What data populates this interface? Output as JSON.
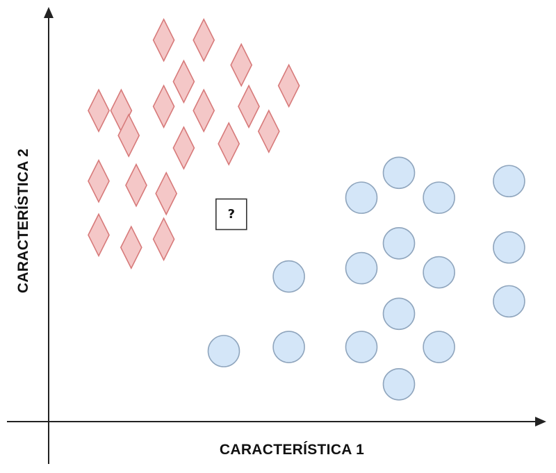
{
  "chart_data": {
    "type": "scatter",
    "xlabel": "CARACTERÍSTICA 1",
    "ylabel": "CARACTERÍSTICA 2",
    "xlim": [
      0,
      100
    ],
    "ylim": [
      0,
      100
    ],
    "grid": false,
    "legend": "none",
    "series": [
      {
        "marker": "diamond",
        "color": "#f4c7c7",
        "stroke": "#d77a7a",
        "points": [
          {
            "x": 23,
            "y": 92
          },
          {
            "x": 31,
            "y": 92
          },
          {
            "x": 38.5,
            "y": 86
          },
          {
            "x": 27,
            "y": 82
          },
          {
            "x": 48,
            "y": 81
          },
          {
            "x": 14.5,
            "y": 75
          },
          {
            "x": 23,
            "y": 76
          },
          {
            "x": 31,
            "y": 75
          },
          {
            "x": 40,
            "y": 76
          },
          {
            "x": 16,
            "y": 69
          },
          {
            "x": 27,
            "y": 66
          },
          {
            "x": 36,
            "y": 67
          },
          {
            "x": 44,
            "y": 70
          },
          {
            "x": 10,
            "y": 75
          },
          {
            "x": 10,
            "y": 58
          },
          {
            "x": 17.5,
            "y": 57
          },
          {
            "x": 23.5,
            "y": 55
          },
          {
            "x": 10,
            "y": 45
          },
          {
            "x": 16.5,
            "y": 42
          },
          {
            "x": 23,
            "y": 44
          }
        ]
      },
      {
        "marker": "circle",
        "color": "#d4e6f8",
        "stroke": "#8fa5bd",
        "points": [
          {
            "x": 70,
            "y": 60
          },
          {
            "x": 92,
            "y": 58
          },
          {
            "x": 62.5,
            "y": 54
          },
          {
            "x": 78,
            "y": 54
          },
          {
            "x": 70,
            "y": 43
          },
          {
            "x": 92,
            "y": 42
          },
          {
            "x": 62.5,
            "y": 37
          },
          {
            "x": 78,
            "y": 36
          },
          {
            "x": 48,
            "y": 35
          },
          {
            "x": 70,
            "y": 26
          },
          {
            "x": 92,
            "y": 29
          },
          {
            "x": 35,
            "y": 17
          },
          {
            "x": 48,
            "y": 18
          },
          {
            "x": 62.5,
            "y": 18
          },
          {
            "x": 78,
            "y": 18
          },
          {
            "x": 70,
            "y": 9
          }
        ]
      }
    ],
    "query_point": {
      "x": 36.5,
      "y": 50,
      "label": "?"
    }
  }
}
